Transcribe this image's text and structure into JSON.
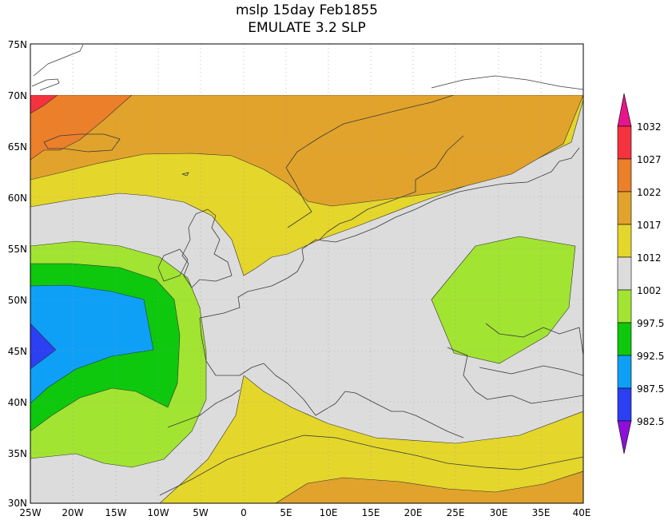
{
  "title": {
    "line1": "mslp 15day Feb1855",
    "line2": "EMULATE 3.2 SLP"
  },
  "map": {
    "lon_range": [
      -25,
      40
    ],
    "lat_range": [
      30,
      75
    ],
    "data_lat_max": 70,
    "grid": true,
    "lon_ticks": [
      "25W",
      "20W",
      "15W",
      "10W",
      "5W",
      "0",
      "5E",
      "10E",
      "15E",
      "20E",
      "25E",
      "30E",
      "35E",
      "40E"
    ],
    "lat_ticks": [
      "75N",
      "70N",
      "65N",
      "60N",
      "55N",
      "50N",
      "45N",
      "40N",
      "35N",
      "30N"
    ]
  },
  "colorbar": {
    "levels": [
      "1032",
      "1027",
      "1022",
      "1017",
      "1012",
      "1002",
      "997.5",
      "992.5",
      "987.5",
      "982.5"
    ],
    "colors": {
      "above_1032": "#e6158c",
      "c1027_1032": "#f4333f",
      "c1022_1027": "#ec7f2a",
      "c1017_1022": "#e1a32b",
      "c1012_1017": "#e4d62b",
      "c1002_1012": "#dcdcdc",
      "c997_1002": "#a1e432",
      "c992_997": "#0dc80d",
      "c987_992": "#0ea0f7",
      "c982_987": "#2b3ff3",
      "below_982": "#8d10d8"
    }
  }
}
